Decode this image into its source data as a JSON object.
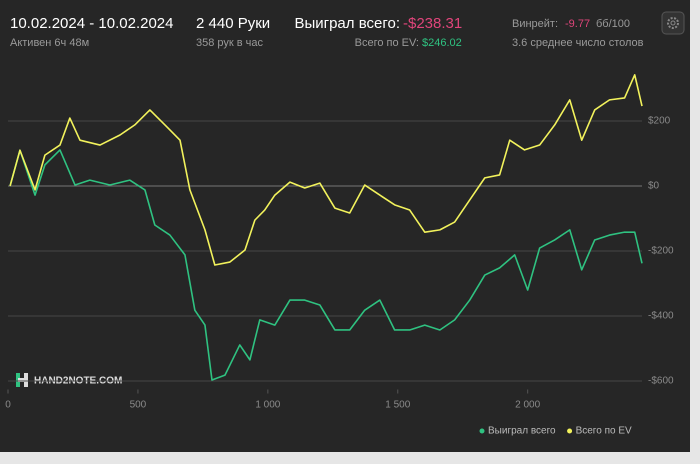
{
  "header": {
    "date_range": "10.02.2024 - 10.02.2024",
    "active": "Активен 6ч 48м",
    "hands": "2 440 Руки",
    "hands_per_hour": "358 рук в час",
    "won_label": "Выиграл всего:",
    "won_value": "-$238.31",
    "ev_label": "Всего по EV:",
    "ev_value": "$246.02",
    "winrate_label": "Винрейт:",
    "winrate_value": "-9.77",
    "winrate_unit": "бб/100",
    "tables": "3.6 среднее число столов",
    "logo": "HAND2NOTE.COM"
  },
  "chart_data": {
    "type": "line",
    "xlim": [
      0,
      2440
    ],
    "ylim": [
      -620,
      400
    ],
    "xticks": [
      0,
      500,
      {
        "value": 1000,
        "label": "1 000"
      },
      {
        "value": 1500,
        "label": "1 500"
      },
      {
        "value": 2000,
        "label": "2 000"
      }
    ],
    "yticks": [
      {
        "value": 200,
        "label": "$200"
      },
      {
        "value": 0,
        "label": "$0"
      },
      {
        "value": -200,
        "label": "-$200"
      },
      {
        "value": -400,
        "label": "-$400"
      },
      {
        "value": -600,
        "label": "-$600"
      }
    ],
    "grid": true,
    "legend": "bottom-right",
    "series": [
      {
        "name": "Выиграл всего",
        "color": "#2fc281",
        "x": [
          8,
          46,
          104,
          142,
          200,
          258,
          315,
          392,
          469,
          527,
          565,
          623,
          681,
          719,
          758,
          785,
          835,
          892,
          931,
          969,
          1027,
          1085,
          1142,
          1200,
          1258,
          1315,
          1373,
          1431,
          1488,
          1546,
          1604,
          1662,
          1719,
          1777,
          1835,
          1892,
          1950,
          2000,
          2046,
          2104,
          2162,
          2208,
          2258,
          2315,
          2373,
          2412,
          2440
        ],
        "values": [
          0,
          110,
          -28,
          65,
          111,
          3,
          18,
          3,
          18,
          -12,
          -120,
          -151,
          -212,
          -382,
          -428,
          -597,
          -582,
          -489,
          -535,
          -412,
          -428,
          -351,
          -351,
          -366,
          -443,
          -443,
          -382,
          -351,
          -443,
          -443,
          -428,
          -443,
          -412,
          -351,
          -274,
          -252,
          -212,
          -320,
          -191,
          -166,
          -135,
          -258,
          -166,
          -151,
          -142,
          -142,
          -238
        ]
      },
      {
        "name": "Всего по EV",
        "color": "#f2f25c",
        "x": [
          8,
          46,
          104,
          142,
          200,
          238,
          277,
          354,
          431,
          488,
          546,
          604,
          662,
          700,
          758,
          796,
          854,
          912,
          950,
          988,
          1027,
          1085,
          1142,
          1200,
          1258,
          1315,
          1373,
          1431,
          1488,
          1546,
          1604,
          1662,
          1719,
          1777,
          1835,
          1892,
          1931,
          1988,
          2046,
          2104,
          2162,
          2208,
          2258,
          2315,
          2373,
          2412,
          2440
        ],
        "values": [
          0,
          110,
          -12,
          95,
          126,
          209,
          141,
          126,
          157,
          188,
          234,
          188,
          141,
          -12,
          -135,
          -243,
          -234,
          -197,
          -105,
          -74,
          -28,
          12,
          -6,
          9,
          -68,
          -83,
          3,
          -28,
          -58,
          -74,
          -142,
          -135,
          -111,
          -43,
          25,
          34,
          141,
          111,
          126,
          188,
          265,
          141,
          234,
          265,
          271,
          342,
          246
        ]
      }
    ]
  }
}
